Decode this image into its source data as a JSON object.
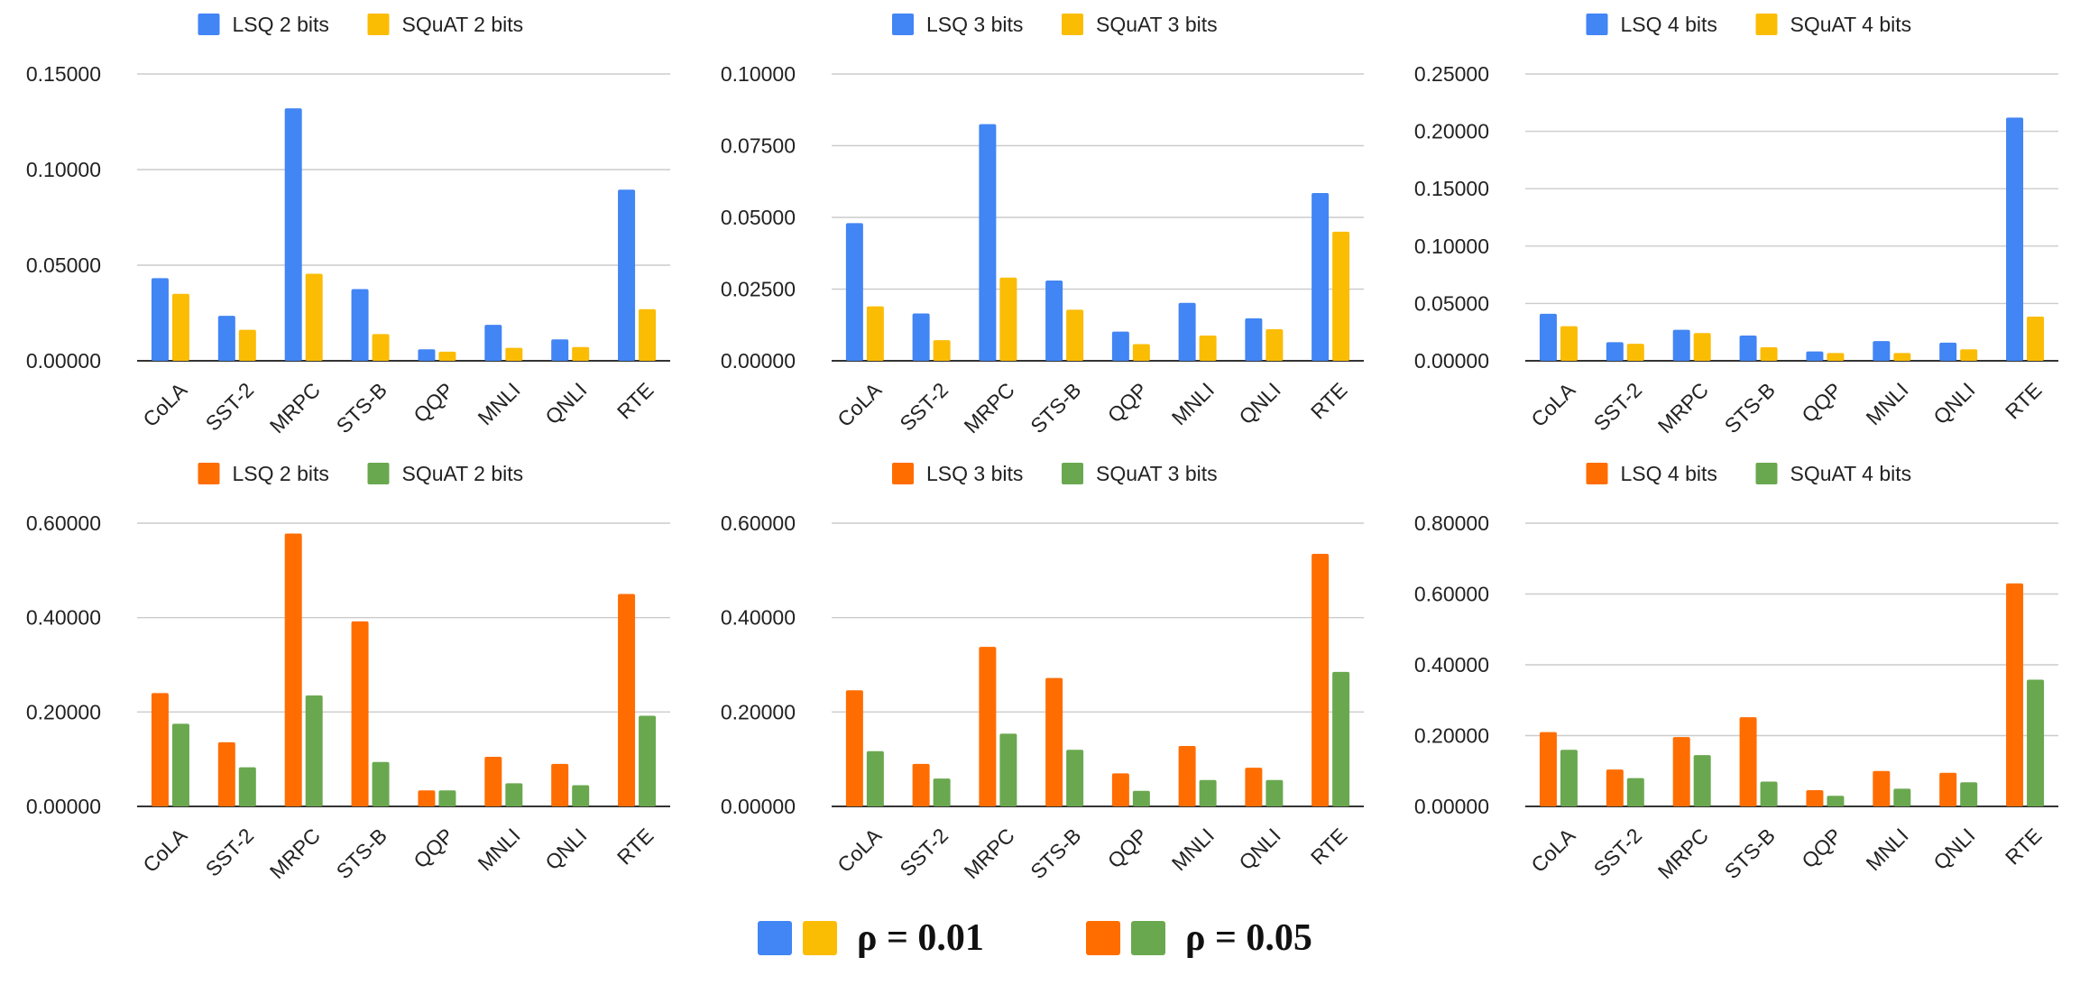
{
  "chart_data": [
    {
      "type": "bar",
      "row": "top",
      "column": 1,
      "group": "rho_001",
      "categories": [
        "CoLA",
        "SST-2",
        "MRPC",
        "STS-B",
        "QQP",
        "MNLI",
        "QNLI",
        "RTE"
      ],
      "series": [
        {
          "name": "LSQ 2 bits",
          "color": "#4285f4",
          "values": [
            0.0432,
            0.0235,
            0.132,
            0.0375,
            0.006,
            0.0188,
            0.0112,
            0.0895
          ]
        },
        {
          "name": "SQuAT 2 bits",
          "color": "#fbbc04",
          "values": [
            0.035,
            0.0162,
            0.0455,
            0.014,
            0.0048,
            0.0068,
            0.0072,
            0.027
          ]
        }
      ],
      "yticks": [
        "0.00000",
        "0.05000",
        "0.10000",
        "0.15000"
      ],
      "ylim": [
        0,
        0.15
      ]
    },
    {
      "type": "bar",
      "row": "top",
      "column": 2,
      "group": "rho_001",
      "categories": [
        "CoLA",
        "SST-2",
        "MRPC",
        "STS-B",
        "QQP",
        "MNLI",
        "QNLI",
        "RTE"
      ],
      "series": [
        {
          "name": "LSQ 3 bits",
          "color": "#4285f4",
          "values": [
            0.048,
            0.0165,
            0.0825,
            0.028,
            0.0102,
            0.0202,
            0.0148,
            0.0585
          ]
        },
        {
          "name": "SQuAT 3 bits",
          "color": "#fbbc04",
          "values": [
            0.019,
            0.0072,
            0.029,
            0.0178,
            0.0058,
            0.0088,
            0.011,
            0.045
          ]
        }
      ],
      "yticks": [
        "0.00000",
        "0.02500",
        "0.05000",
        "0.07500",
        "0.10000"
      ],
      "ylim": [
        0,
        0.1
      ]
    },
    {
      "type": "bar",
      "row": "top",
      "column": 3,
      "group": "rho_001",
      "categories": [
        "CoLA",
        "SST-2",
        "MRPC",
        "STS-B",
        "QQP",
        "MNLI",
        "QNLI",
        "RTE"
      ],
      "series": [
        {
          "name": "LSQ 4 bits",
          "color": "#4285f4",
          "values": [
            0.041,
            0.0162,
            0.027,
            0.022,
            0.0082,
            0.0172,
            0.0158,
            0.212
          ]
        },
        {
          "name": "SQuAT 4 bits",
          "color": "#fbbc04",
          "values": [
            0.0302,
            0.0148,
            0.0242,
            0.0118,
            0.0068,
            0.0068,
            0.01,
            0.0385
          ]
        }
      ],
      "yticks": [
        "0.00000",
        "0.05000",
        "0.10000",
        "0.15000",
        "0.20000",
        "0.25000"
      ],
      "ylim": [
        0,
        0.25
      ]
    },
    {
      "type": "bar",
      "row": "bottom",
      "column": 1,
      "group": "rho_005",
      "categories": [
        "CoLA",
        "SST-2",
        "MRPC",
        "STS-B",
        "QQP",
        "MNLI",
        "QNLI",
        "RTE"
      ],
      "series": [
        {
          "name": "LSQ 2 bits",
          "color": "#ff6d01",
          "values": [
            0.24,
            0.136,
            0.578,
            0.392,
            0.034,
            0.105,
            0.09,
            0.45
          ]
        },
        {
          "name": "SQuAT 2 bits",
          "color": "#6aa84f",
          "values": [
            0.175,
            0.083,
            0.235,
            0.094,
            0.034,
            0.049,
            0.045,
            0.192
          ]
        }
      ],
      "yticks": [
        "0.00000",
        "0.20000",
        "0.40000",
        "0.60000"
      ],
      "ylim": [
        0,
        0.6
      ]
    },
    {
      "type": "bar",
      "row": "bottom",
      "column": 2,
      "group": "rho_005",
      "categories": [
        "CoLA",
        "SST-2",
        "MRPC",
        "STS-B",
        "QQP",
        "MNLI",
        "QNLI",
        "RTE"
      ],
      "series": [
        {
          "name": "LSQ 3 bits",
          "color": "#ff6d01",
          "values": [
            0.246,
            0.09,
            0.338,
            0.272,
            0.07,
            0.128,
            0.082,
            0.535
          ]
        },
        {
          "name": "SQuAT 3 bits",
          "color": "#6aa84f",
          "values": [
            0.117,
            0.059,
            0.154,
            0.12,
            0.033,
            0.056,
            0.056,
            0.285
          ]
        }
      ],
      "yticks": [
        "0.00000",
        "0.20000",
        "0.40000",
        "0.60000"
      ],
      "ylim": [
        0,
        0.6
      ]
    },
    {
      "type": "bar",
      "row": "bottom",
      "column": 3,
      "group": "rho_005",
      "categories": [
        "CoLA",
        "SST-2",
        "MRPC",
        "STS-B",
        "QQP",
        "MNLI",
        "QNLI",
        "RTE"
      ],
      "series": [
        {
          "name": "LSQ 4 bits",
          "color": "#ff6d01",
          "values": [
            0.21,
            0.104,
            0.196,
            0.252,
            0.046,
            0.1,
            0.095,
            0.63
          ]
        },
        {
          "name": "SQuAT 4 bits",
          "color": "#6aa84f",
          "values": [
            0.16,
            0.08,
            0.145,
            0.07,
            0.03,
            0.05,
            0.068,
            0.358
          ]
        }
      ],
      "yticks": [
        "0.00000",
        "0.20000",
        "0.40000",
        "0.60000",
        "0.80000"
      ],
      "ylim": [
        0,
        0.8
      ]
    }
  ],
  "bottom_legend": [
    {
      "label": "ρ = 0.01",
      "colors": [
        "#4285f4",
        "#fbbc04"
      ]
    },
    {
      "label": "ρ = 0.05",
      "colors": [
        "#ff6d01",
        "#6aa84f"
      ]
    }
  ]
}
